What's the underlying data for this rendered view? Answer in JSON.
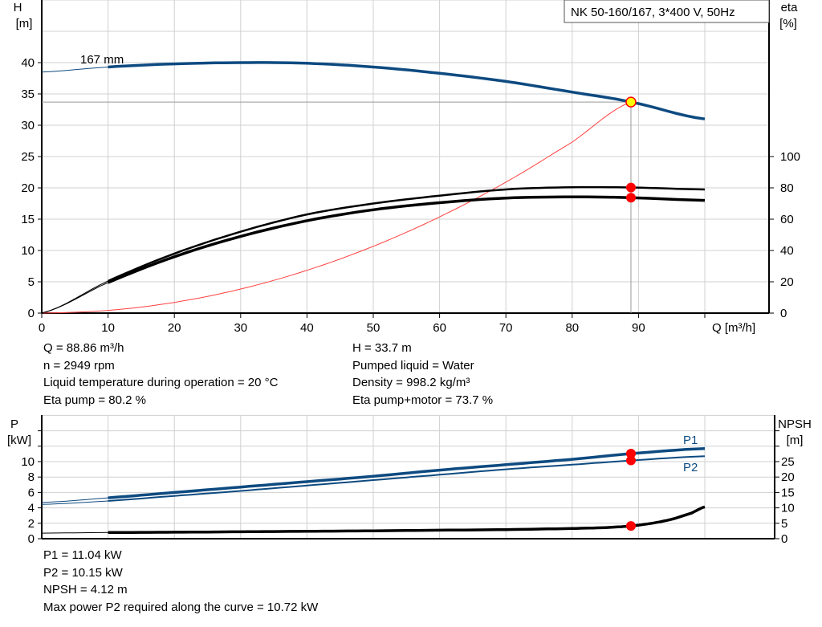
{
  "chart_data": [
    {
      "type": "line",
      "title": "NK 50-160/167, 3*400 V, 50Hz",
      "xlabel": "Q [m³/h]",
      "ylabel_left": [
        "H",
        "[m]"
      ],
      "ylabel_right": [
        "eta",
        "[%]"
      ],
      "xlim": [
        0,
        110
      ],
      "ylim_left": [
        0,
        50
      ],
      "ylim_right": [
        0,
        200
      ],
      "x_ticks": [
        "0",
        "10",
        "20",
        "30",
        "40",
        "50",
        "60",
        "70",
        "80",
        "90"
      ],
      "y_ticks_left": [
        "0",
        "5",
        "10",
        "15",
        "20",
        "25",
        "30",
        "35",
        "40"
      ],
      "y_ticks_right": [
        "0",
        "20",
        "40",
        "60",
        "80",
        "100"
      ],
      "grid": true,
      "annotation": "167 mm",
      "series": [
        {
          "id": "head",
          "axis": "left",
          "color": "#0d4a80",
          "x": [
            0,
            10,
            20,
            30,
            40,
            50,
            60,
            70,
            80,
            88.86,
            100
          ],
          "y": [
            38.5,
            39.3,
            39.8,
            40,
            39.9,
            39.3,
            38.3,
            37,
            35.3,
            33.7,
            31
          ]
        },
        {
          "id": "eta_pump",
          "axis": "right",
          "color": "#000000",
          "x": [
            0,
            10,
            20,
            30,
            40,
            50,
            60,
            70,
            80,
            88.86,
            100
          ],
          "y": [
            0,
            20.5,
            38,
            52,
            63,
            70,
            75,
            79,
            80.4,
            80.2,
            79
          ]
        },
        {
          "id": "eta_pump_motor",
          "axis": "right",
          "color": "#000000",
          "x": [
            0,
            10,
            20,
            30,
            40,
            50,
            60,
            70,
            80,
            88.86,
            100
          ],
          "y": [
            0,
            19.5,
            36,
            49,
            59,
            66,
            70.5,
            73.5,
            74.2,
            73.7,
            72
          ]
        },
        {
          "id": "system_curve",
          "axis": "left",
          "color": "#ff4040",
          "x": [
            0,
            10,
            20,
            30,
            40,
            50,
            60,
            70,
            80,
            88.86
          ],
          "y": [
            0,
            0.43,
            1.71,
            3.84,
            6.83,
            10.67,
            15.36,
            20.91,
            27.31,
            33.7
          ]
        }
      ],
      "operating_point": {
        "q": 88.86,
        "h": 33.7,
        "eta_pump": 80.2,
        "eta_pump_motor": 73.7
      }
    },
    {
      "type": "line",
      "ylabel_left": [
        "P",
        "[kW]"
      ],
      "ylabel_right": [
        "NPSH",
        "[m]"
      ],
      "xlim": [
        0,
        110
      ],
      "ylim_left": [
        0,
        16
      ],
      "ylim_right": [
        0,
        40
      ],
      "y_ticks_left": [
        "0",
        "2",
        "4",
        "6",
        "8",
        "10"
      ],
      "y_ticks_right": [
        "0",
        "5",
        "10",
        "15",
        "20",
        "25"
      ],
      "grid": true,
      "series": [
        {
          "id": "p1",
          "name": "P1",
          "axis": "left",
          "color": "#0d4a80",
          "x": [
            0,
            10,
            20,
            30,
            40,
            50,
            60,
            70,
            80,
            88.86,
            100
          ],
          "y": [
            4.7,
            5.3,
            6,
            6.7,
            7.4,
            8.1,
            8.9,
            9.6,
            10.3,
            11.04,
            11.7
          ]
        },
        {
          "id": "p2",
          "name": "P2",
          "axis": "left",
          "color": "#0d4a80",
          "x": [
            0,
            10,
            20,
            30,
            40,
            50,
            60,
            70,
            80,
            88.86,
            100
          ],
          "y": [
            4.45,
            4.9,
            5.55,
            6.2,
            6.9,
            7.6,
            8.3,
            9,
            9.6,
            10.15,
            10.7
          ]
        },
        {
          "id": "npsh",
          "axis": "right",
          "color": "#000000",
          "x": [
            0,
            10,
            20,
            30,
            40,
            50,
            60,
            70,
            80,
            85,
            88.86,
            92,
            95,
            98,
            100
          ],
          "y": [
            1.8,
            2,
            2.1,
            2.25,
            2.4,
            2.55,
            2.75,
            2.95,
            3.3,
            3.6,
            4.12,
            5,
            6.3,
            8.3,
            10.3
          ]
        }
      ]
    }
  ],
  "info_top_left": [
    "Q = 88.86 m³/h",
    "n = 2949 rpm",
    "Liquid temperature during operation = 20 °C",
    "Eta pump = 80.2 %"
  ],
  "info_top_right": [
    "H = 33.7 m",
    "Pumped liquid = Water",
    "Density = 998.2 kg/m³",
    "Eta pump+motor = 73.7 %"
  ],
  "info_bottom": [
    "P1 = 11.04 kW",
    "P2 = 10.15 kW",
    "NPSH = 4.12 m",
    "Max power P2 required along the curve = 10.72 kW"
  ],
  "colors": {
    "grid": "#d0d0d0",
    "marker": "#ff0000",
    "op_point_fill": "#ffff00"
  }
}
